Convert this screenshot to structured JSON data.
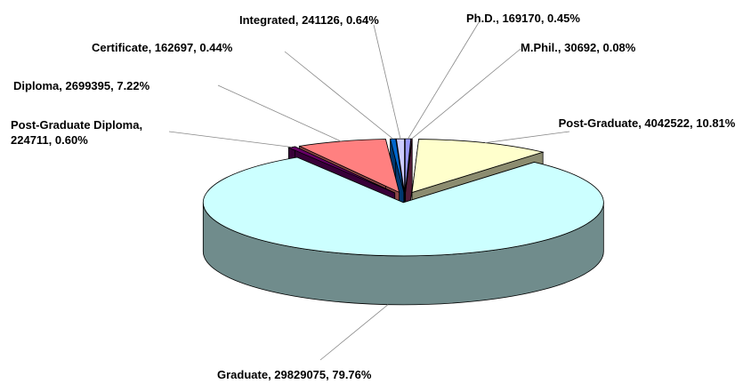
{
  "chart_data": {
    "type": "pie",
    "style": "3d-exploded",
    "values": [
      169170,
      30692,
      4042522,
      29829075,
      224711,
      2699395,
      162697,
      241126
    ],
    "value_labels": [
      "Ph.D., 169170, 0.45%",
      "M.Phil., 30692, 0.08%",
      "Post-Graduate, 4042522, 10.81%",
      "Graduate, 29829075, 79.76%",
      "Post-Graduate Diploma, 224711, 0.60%",
      "Diploma, 2699395, 7.22%",
      "Certificate, 162697, 0.44%",
      "Integrated, 241126, 0.64%"
    ],
    "colors": [
      "#9999ff",
      "#993366",
      "#ffffcc",
      "#ccffff",
      "#660066",
      "#ff8080",
      "#0066cc",
      "#ccccff"
    ]
  }
}
